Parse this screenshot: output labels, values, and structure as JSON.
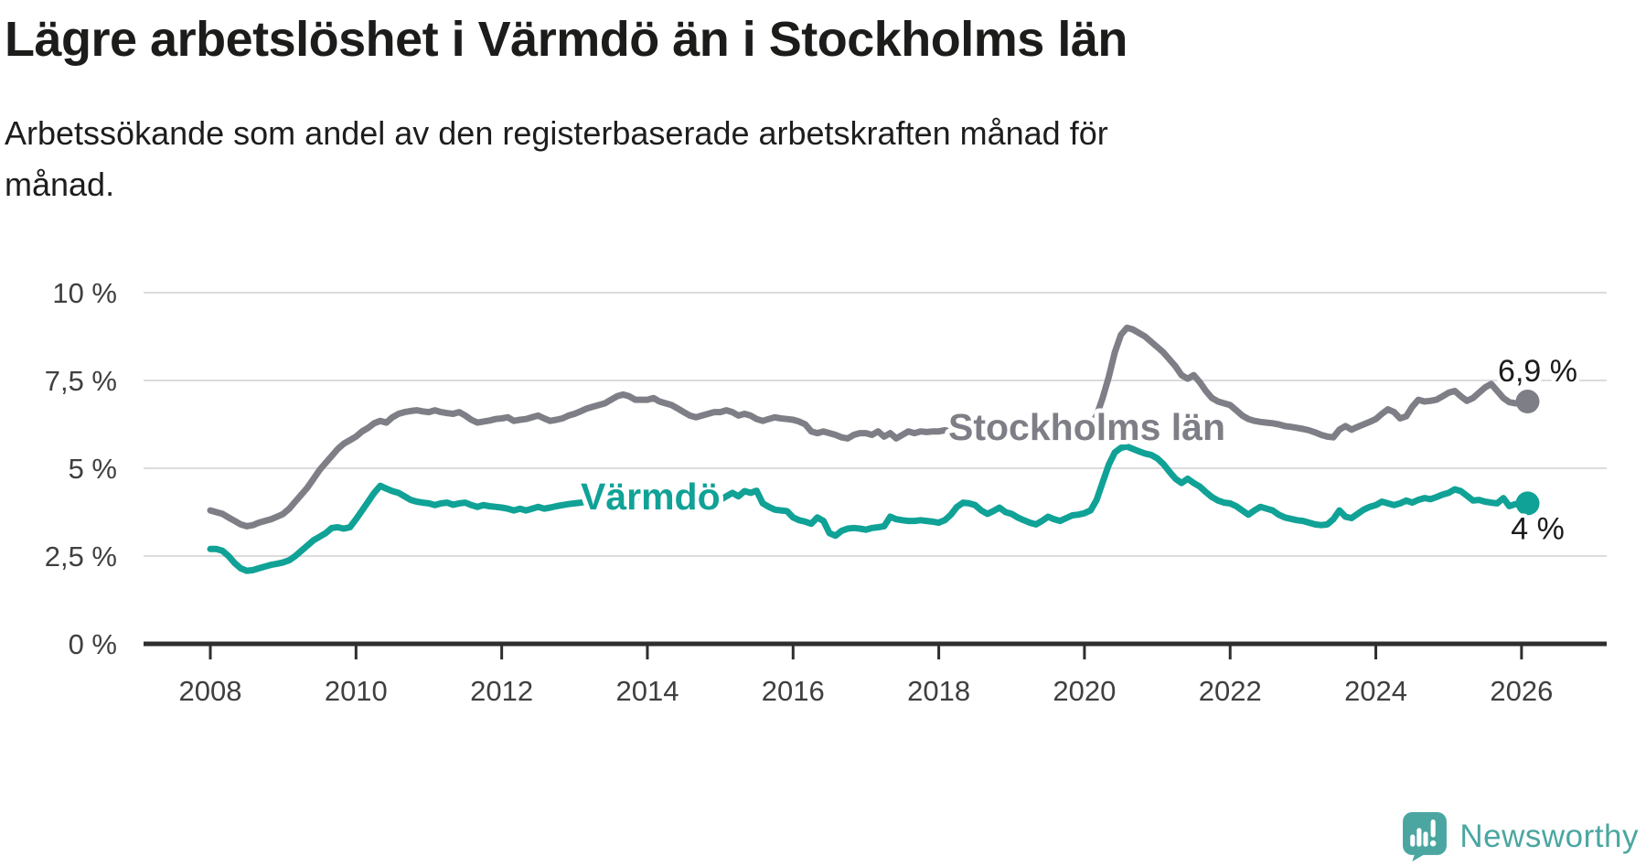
{
  "header": {
    "title": "Lägre arbetslöshet i Värmdö än i Stockholms län",
    "subtitle_line1": "Arbetssökande som andel av den registerbaserade arbetskraften månad för",
    "subtitle_line2": "månad."
  },
  "footer": {
    "brand": "Newsworthy"
  },
  "colors": {
    "varmdo": "#10a296",
    "stockholm": "#7e7e86",
    "brand": "#4ba6a1",
    "grid": "#dcdcdc",
    "axis": "#2e2e2e",
    "text": "#1c1c1b"
  },
  "chart_data": {
    "type": "line",
    "title": "Lägre arbetslöshet i Värmdö än i Stockholms län",
    "subtitle": "Arbetssökande som andel av den registerbaserade arbetskraften månad för månad.",
    "x_start": {
      "year": 2008,
      "month": 1
    },
    "x_step_months": 1,
    "xlabel": "",
    "ylabel": "",
    "ylim": [
      0,
      10
    ],
    "grid": true,
    "legend_position": "inline-labels",
    "x_tick_labels": [
      "2008",
      "2010",
      "2012",
      "2014",
      "2016",
      "2018",
      "2020",
      "2022",
      "2024",
      "2026"
    ],
    "x_tick_month_index": [
      0,
      24,
      48,
      72,
      96,
      120,
      144,
      168,
      192,
      216
    ],
    "y_ticks": [
      {
        "value": 10,
        "label": "10 %"
      },
      {
        "value": 7.5,
        "label": "7,5 %"
      },
      {
        "value": 5,
        "label": "5 %"
      },
      {
        "value": 2.5,
        "label": "2,5 %"
      },
      {
        "value": 0,
        "label": "0 %"
      }
    ],
    "series": [
      {
        "name": "Stockholms län",
        "color": "#7e7e86",
        "end_label": "6,9 %",
        "end_value": 6.9,
        "values": [
          3.8,
          3.75,
          3.7,
          3.6,
          3.5,
          3.4,
          3.35,
          3.38,
          3.45,
          3.5,
          3.55,
          3.62,
          3.7,
          3.85,
          4.05,
          4.25,
          4.45,
          4.7,
          4.95,
          5.15,
          5.35,
          5.55,
          5.7,
          5.8,
          5.9,
          6.05,
          6.15,
          6.28,
          6.35,
          6.3,
          6.45,
          6.55,
          6.6,
          6.63,
          6.65,
          6.62,
          6.6,
          6.65,
          6.6,
          6.57,
          6.55,
          6.6,
          6.5,
          6.38,
          6.3,
          6.33,
          6.36,
          6.4,
          6.42,
          6.45,
          6.35,
          6.38,
          6.4,
          6.45,
          6.5,
          6.42,
          6.35,
          6.38,
          6.42,
          6.5,
          6.55,
          6.62,
          6.7,
          6.75,
          6.8,
          6.85,
          6.95,
          7.05,
          7.1,
          7.05,
          6.95,
          6.95,
          6.95,
          7.0,
          6.9,
          6.85,
          6.8,
          6.7,
          6.6,
          6.5,
          6.45,
          6.5,
          6.55,
          6.6,
          6.6,
          6.65,
          6.6,
          6.5,
          6.55,
          6.5,
          6.4,
          6.35,
          6.4,
          6.45,
          6.42,
          6.4,
          6.38,
          6.33,
          6.25,
          6.05,
          6.0,
          6.05,
          6.0,
          5.95,
          5.88,
          5.85,
          5.95,
          6.0,
          6.0,
          5.95,
          6.05,
          5.9,
          6.0,
          5.85,
          5.95,
          6.05,
          6.0,
          6.05,
          6.03,
          6.05,
          6.05,
          6.08,
          6.05,
          6.02,
          6.0,
          6.05,
          6.08,
          6.05,
          6.02,
          6.05,
          6.08,
          6.1,
          6.1,
          6.08,
          6.05,
          6.02,
          6.0,
          6.05,
          6.08,
          6.1,
          6.08,
          6.05,
          6.08,
          6.1,
          6.15,
          6.2,
          6.5,
          7.0,
          7.6,
          8.3,
          8.8,
          9.0,
          8.95,
          8.85,
          8.75,
          8.6,
          8.45,
          8.3,
          8.1,
          7.9,
          7.65,
          7.55,
          7.65,
          7.45,
          7.2,
          7.0,
          6.9,
          6.85,
          6.8,
          6.65,
          6.5,
          6.4,
          6.35,
          6.32,
          6.3,
          6.28,
          6.25,
          6.2,
          6.18,
          6.15,
          6.12,
          6.08,
          6.02,
          5.95,
          5.9,
          5.88,
          6.1,
          6.2,
          6.1,
          6.18,
          6.25,
          6.32,
          6.4,
          6.55,
          6.68,
          6.6,
          6.42,
          6.48,
          6.75,
          6.95,
          6.9,
          6.92,
          6.95,
          7.05,
          7.15,
          7.2,
          7.05,
          6.92,
          7.0,
          7.15,
          7.3,
          7.4,
          7.2,
          7.0,
          6.88,
          6.85,
          6.88,
          6.9
        ]
      },
      {
        "name": "Värmdö",
        "color": "#10a296",
        "end_label": "4 %",
        "end_value": 4.0,
        "values": [
          2.7,
          2.7,
          2.65,
          2.5,
          2.3,
          2.15,
          2.08,
          2.1,
          2.15,
          2.2,
          2.25,
          2.28,
          2.32,
          2.38,
          2.5,
          2.65,
          2.8,
          2.95,
          3.05,
          3.15,
          3.3,
          3.32,
          3.28,
          3.32,
          3.55,
          3.8,
          4.05,
          4.3,
          4.5,
          4.42,
          4.35,
          4.3,
          4.2,
          4.1,
          4.05,
          4.02,
          4.0,
          3.95,
          4.0,
          4.02,
          3.96,
          4.0,
          4.02,
          3.95,
          3.9,
          3.95,
          3.92,
          3.9,
          3.88,
          3.85,
          3.8,
          3.85,
          3.8,
          3.85,
          3.9,
          3.85,
          3.88,
          3.92,
          3.95,
          3.98,
          4.0,
          4.02,
          4.05,
          4.05,
          4.08,
          4.1,
          4.1,
          4.12,
          4.15,
          4.15,
          4.18,
          4.18,
          4.2,
          4.2,
          4.18,
          4.15,
          4.15,
          4.12,
          4.1,
          4.1,
          4.12,
          4.1,
          4.08,
          4.1,
          4.1,
          4.2,
          4.3,
          4.2,
          4.35,
          4.3,
          4.36,
          4.0,
          3.9,
          3.82,
          3.8,
          3.78,
          3.6,
          3.52,
          3.48,
          3.42,
          3.6,
          3.5,
          3.15,
          3.08,
          3.22,
          3.28,
          3.3,
          3.28,
          3.25,
          3.3,
          3.32,
          3.35,
          3.62,
          3.55,
          3.52,
          3.5,
          3.5,
          3.52,
          3.5,
          3.48,
          3.45,
          3.52,
          3.68,
          3.9,
          4.02,
          4.0,
          3.95,
          3.8,
          3.7,
          3.78,
          3.88,
          3.75,
          3.7,
          3.6,
          3.52,
          3.45,
          3.4,
          3.5,
          3.62,
          3.55,
          3.5,
          3.58,
          3.66,
          3.68,
          3.72,
          3.8,
          4.1,
          4.6,
          5.1,
          5.45,
          5.58,
          5.62,
          5.55,
          5.48,
          5.42,
          5.38,
          5.28,
          5.12,
          4.9,
          4.7,
          4.58,
          4.7,
          4.58,
          4.48,
          4.32,
          4.18,
          4.08,
          4.02,
          4.0,
          3.92,
          3.8,
          3.68,
          3.8,
          3.9,
          3.85,
          3.8,
          3.68,
          3.6,
          3.56,
          3.52,
          3.5,
          3.45,
          3.4,
          3.38,
          3.4,
          3.55,
          3.8,
          3.62,
          3.58,
          3.7,
          3.82,
          3.9,
          3.95,
          4.05,
          4.0,
          3.95,
          4.0,
          4.08,
          4.02,
          4.1,
          4.15,
          4.12,
          4.18,
          4.25,
          4.3,
          4.4,
          4.35,
          4.22,
          4.08,
          4.1,
          4.05,
          4.02,
          4.0,
          4.15,
          3.92,
          3.98,
          4.0,
          4.0
        ]
      }
    ]
  }
}
